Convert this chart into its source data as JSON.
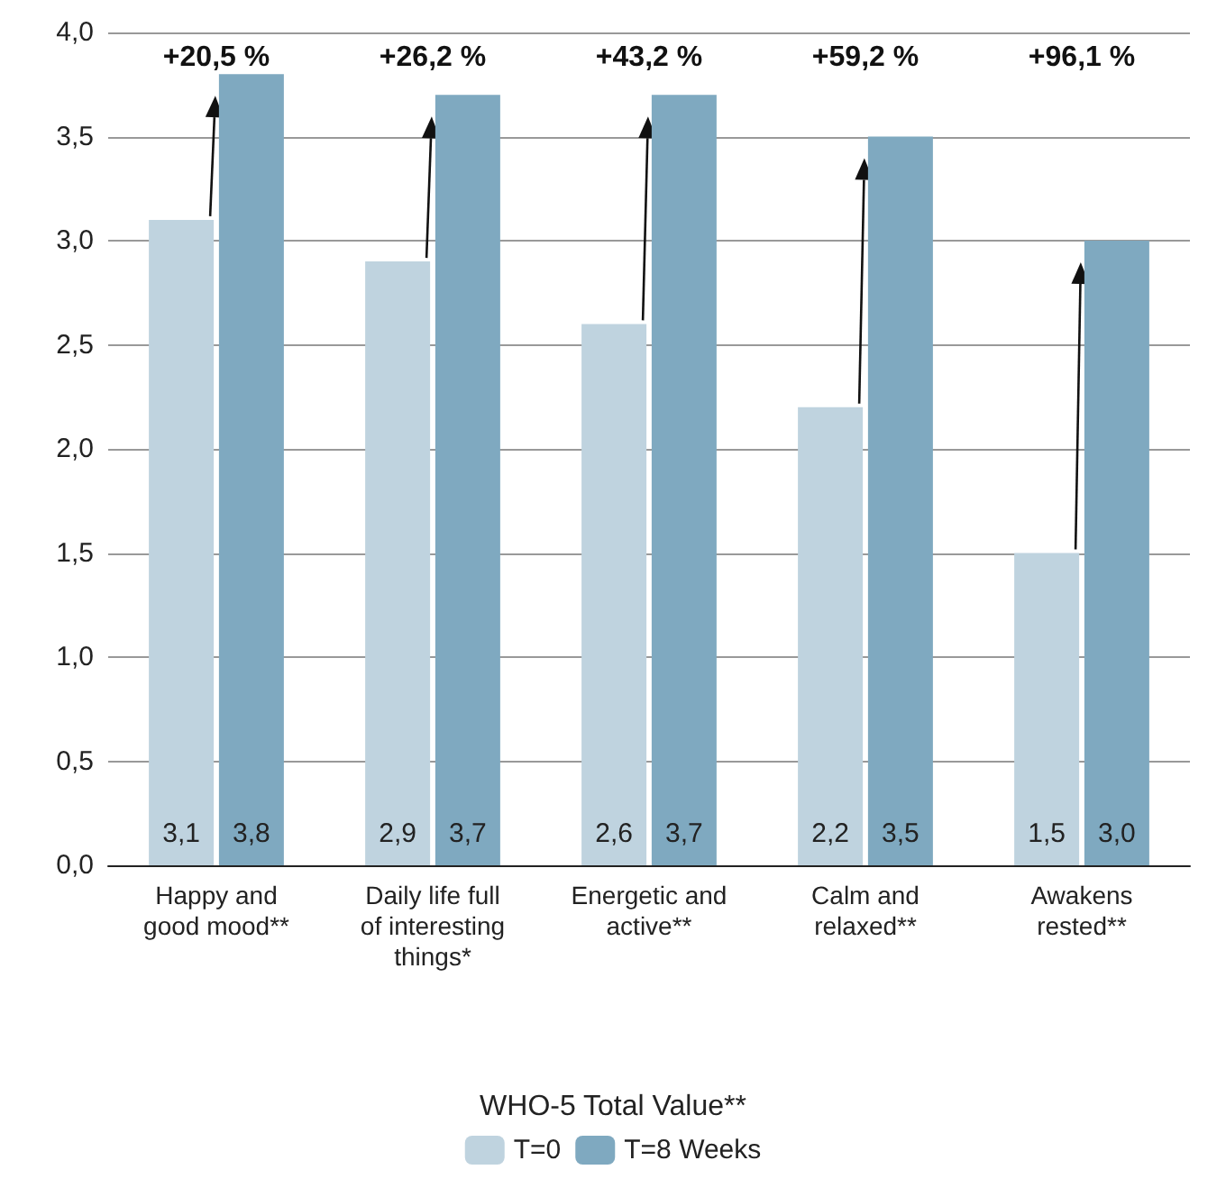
{
  "chart_data": {
    "type": "bar",
    "legend_title": "WHO-5 Total Value**",
    "categories": [
      "Happy and\ngood mood**",
      "Daily life full\nof interesting\nthings*",
      "Energetic and\nactive**",
      "Calm and\nrelaxed**",
      "Awakens\nrested**"
    ],
    "series": [
      {
        "name": "T=0",
        "color": "#bfd3df",
        "values": [
          3.1,
          2.9,
          2.6,
          2.2,
          1.5
        ],
        "value_labels": [
          "3,1",
          "2,9",
          "2,6",
          "2,2",
          "1,5"
        ]
      },
      {
        "name": "T=8 Weeks",
        "color": "#7fa9c0",
        "values": [
          3.8,
          3.7,
          3.7,
          3.5,
          3.0
        ],
        "value_labels": [
          "3,8",
          "3,7",
          "3,7",
          "3,5",
          "3,0"
        ]
      }
    ],
    "ylim": [
      0,
      4
    ],
    "yticks": [
      {
        "value": 0,
        "label": "0,0"
      },
      {
        "value": 0.5,
        "label": "0,5"
      },
      {
        "value": 1,
        "label": "1,0"
      },
      {
        "value": 1.5,
        "label": "1,5"
      },
      {
        "value": 2,
        "label": "2,0"
      },
      {
        "value": 2.5,
        "label": "2,5"
      },
      {
        "value": 3,
        "label": "3,0"
      },
      {
        "value": 3.5,
        "label": "3,5"
      },
      {
        "value": 4,
        "label": "4,0"
      }
    ],
    "grid": "y",
    "legend": "bottom",
    "annotations": [
      "+20,5 %",
      "+26,2 %",
      "+43,2 %",
      "+59,2 %",
      "+96,1 %"
    ]
  }
}
